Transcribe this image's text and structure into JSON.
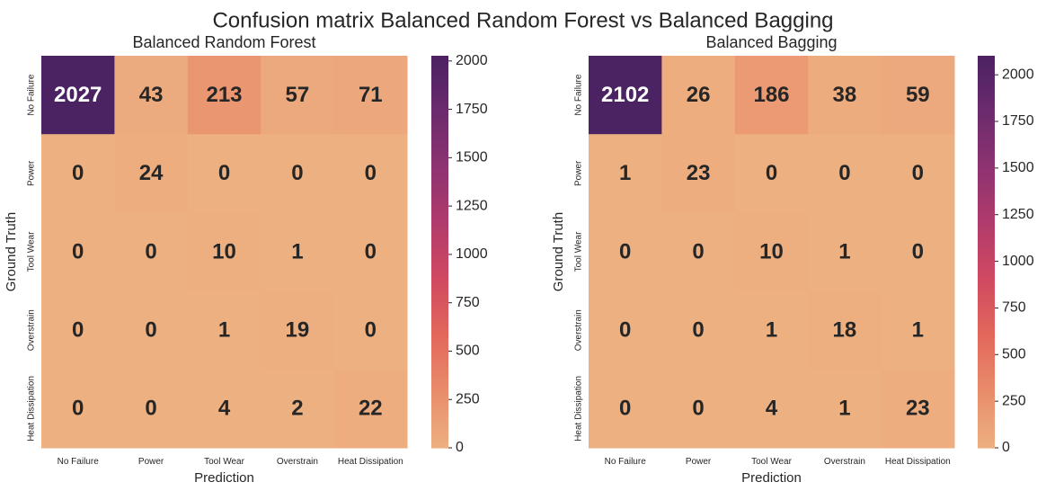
{
  "title": "Confusion matrix Balanced Random Forest vs Balanced Bagging",
  "chart_data": [
    {
      "type": "heatmap",
      "title": "Balanced Random Forest",
      "xlabel": "Prediction",
      "ylabel": "Ground Truth",
      "x_categories": [
        "No Failure",
        "Power",
        "Tool Wear",
        "Overstrain",
        "Heat Dissipation"
      ],
      "y_categories": [
        "No Failure",
        "Power",
        "Tool Wear",
        "Overstrain",
        "Heat Dissipation"
      ],
      "values": [
        [
          2027,
          43,
          213,
          57,
          71
        ],
        [
          0,
          24,
          0,
          0,
          0
        ],
        [
          0,
          0,
          10,
          1,
          0
        ],
        [
          0,
          0,
          1,
          19,
          0
        ],
        [
          0,
          0,
          4,
          2,
          22
        ]
      ],
      "colorbar": {
        "min": 0,
        "max": 2027,
        "ticks": [
          0,
          250,
          500,
          750,
          1000,
          1250,
          1500,
          1750,
          2000
        ],
        "colormap": "flare"
      }
    },
    {
      "type": "heatmap",
      "title": "Balanced Bagging",
      "xlabel": "Prediction",
      "ylabel": "Ground Truth",
      "x_categories": [
        "No Failure",
        "Power",
        "Tool Wear",
        "Overstrain",
        "Heat Dissipation"
      ],
      "y_categories": [
        "No Failure",
        "Power",
        "Tool Wear",
        "Overstrain",
        "Heat Dissipation"
      ],
      "values": [
        [
          2102,
          26,
          186,
          38,
          59
        ],
        [
          1,
          23,
          0,
          0,
          0
        ],
        [
          0,
          0,
          10,
          1,
          0
        ],
        [
          0,
          0,
          1,
          18,
          1
        ],
        [
          0,
          0,
          4,
          1,
          23
        ]
      ],
      "colorbar": {
        "min": 0,
        "max": 2102,
        "ticks": [
          0,
          250,
          500,
          750,
          1000,
          1250,
          1500,
          1750,
          2000
        ],
        "colormap": "flare"
      }
    }
  ],
  "colors": {
    "colormap_stops": [
      "#edb081",
      "#e98d6b",
      "#e3685c",
      "#d14a61",
      "#b13c6c",
      "#8f3371",
      "#6c2b6d",
      "#4b2262"
    ],
    "text_dark": "#262626",
    "text_light": "#ffffff"
  }
}
